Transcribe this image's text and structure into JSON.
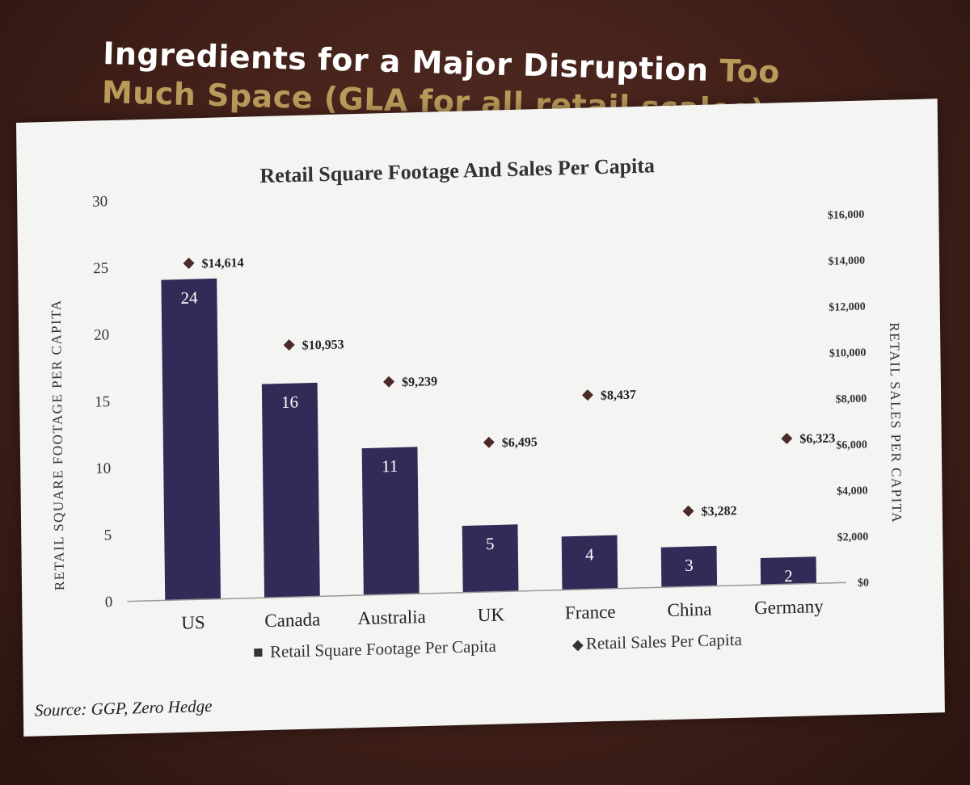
{
  "slide": {
    "title_white": "Ingredients for a Major Disruption",
    "title_gold": "Too Much Space (GLA for all retail scales)",
    "source": "Source: GGP, Zero Hedge"
  },
  "chart_data": {
    "type": "bar",
    "title": "Retail Square Footage And Sales Per Capita",
    "categories": [
      "US",
      "Canada",
      "Australia",
      "UK",
      "France",
      "China",
      "Germany"
    ],
    "series": [
      {
        "name": "Retail Square Footage Per Capita",
        "type": "bar",
        "axis": "left",
        "values": [
          24,
          16,
          11,
          5,
          4,
          3,
          2
        ],
        "value_labels": [
          "24",
          "16",
          "11",
          "5",
          "4",
          "3",
          "2"
        ],
        "color": "#332a57"
      },
      {
        "name": "Retail Sales Per Capita",
        "type": "scatter",
        "axis": "right",
        "values": [
          14614,
          10953,
          9239,
          6495,
          8437,
          3282,
          6323
        ],
        "value_labels": [
          "$14,614",
          "$10,953",
          "$9,239",
          "$6,495",
          "$8,437",
          "$3,282",
          "$6,323"
        ],
        "color": "#4a2a26",
        "marker": "diamond"
      }
    ],
    "ylabel": "RETAIL SQUARE FOOTAGE PER CAPITA",
    "y2label": "RETAIL SALES PER CAPITA",
    "ylim": [
      0,
      30
    ],
    "y2lim": [
      0,
      16000
    ],
    "yticks": [
      0,
      5,
      10,
      15,
      20,
      25,
      30
    ],
    "yticklabels": [
      "0",
      "5",
      "10",
      "15",
      "20",
      "25",
      "30"
    ],
    "y2ticks": [
      0,
      2000,
      4000,
      6000,
      8000,
      10000,
      12000,
      14000,
      16000
    ],
    "y2ticklabels": [
      "$0",
      "$2,000",
      "$4,000",
      "$6,000",
      "$8,000",
      "$10,000",
      "$12,000",
      "$14,000",
      "$16,000"
    ],
    "legend_position": "bottom",
    "legend_marks": [
      "■",
      "◆"
    ],
    "grid": false,
    "colors": {
      "bar": "#332a57",
      "bar_label": "#ffffff",
      "marker": "#4a2a26",
      "text": "#333333",
      "axis": "#999999"
    }
  }
}
